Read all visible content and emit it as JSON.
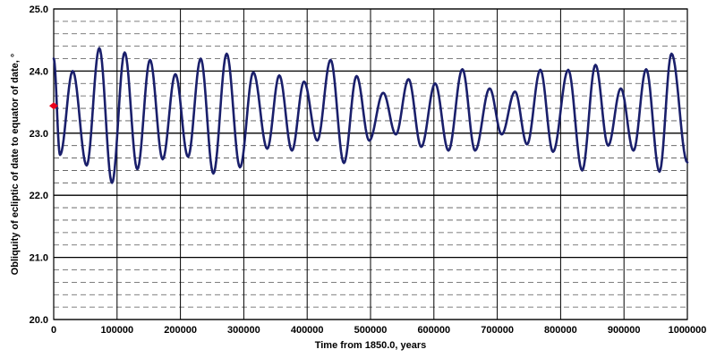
{
  "chart_data": {
    "type": "line",
    "title": "",
    "xlabel": "Time from 1850.0, years",
    "ylabel": "Obliquity of ecliptic of date to equator of date, °",
    "xlim": [
      0,
      1000000
    ],
    "ylim": [
      20.0,
      25.0
    ],
    "x_ticks": [
      0,
      100000,
      200000,
      300000,
      400000,
      500000,
      600000,
      700000,
      800000,
      900000,
      1000000
    ],
    "x_tick_labels": [
      "0",
      "100000",
      "200000",
      "300000",
      "400000",
      "500000",
      "600000",
      "700000",
      "800000",
      "900000",
      "1000000"
    ],
    "y_ticks": [
      20.0,
      21.0,
      22.0,
      23.0,
      24.0,
      25.0
    ],
    "y_tick_labels": [
      "20.0",
      "21.0",
      "22.0",
      "23.0",
      "24.0",
      "25.0"
    ],
    "grid": {
      "major_y": true,
      "minor_y_dashed": true,
      "vertical": true
    },
    "legend": "none",
    "line_color": "#1a1f6b",
    "marker_color": "#e8001c",
    "current_marker": {
      "x": 0,
      "y": 23.44
    },
    "series": [
      {
        "extrema": [
          [
            0,
            24.2
          ],
          [
            10000,
            22.65
          ],
          [
            30000,
            24.0
          ],
          [
            52000,
            22.48
          ],
          [
            72000,
            24.37
          ],
          [
            92000,
            22.2
          ],
          [
            112000,
            24.3
          ],
          [
            132000,
            22.42
          ],
          [
            152000,
            24.18
          ],
          [
            172000,
            22.58
          ],
          [
            192000,
            23.95
          ],
          [
            212000,
            22.62
          ],
          [
            232000,
            24.2
          ],
          [
            252000,
            22.35
          ],
          [
            273000,
            24.28
          ],
          [
            294000,
            22.45
          ],
          [
            315000,
            23.98
          ],
          [
            337000,
            22.75
          ],
          [
            356000,
            23.93
          ],
          [
            376000,
            22.72
          ],
          [
            395000,
            23.83
          ],
          [
            416000,
            22.88
          ],
          [
            437000,
            24.18
          ],
          [
            458000,
            22.52
          ],
          [
            478000,
            23.92
          ],
          [
            498000,
            22.88
          ],
          [
            520000,
            23.65
          ],
          [
            540000,
            22.98
          ],
          [
            560000,
            23.87
          ],
          [
            580000,
            22.78
          ],
          [
            602000,
            23.8
          ],
          [
            623000,
            22.72
          ],
          [
            645000,
            24.03
          ],
          [
            665000,
            22.72
          ],
          [
            688000,
            23.72
          ],
          [
            707000,
            22.98
          ],
          [
            728000,
            23.67
          ],
          [
            747000,
            22.82
          ],
          [
            768000,
            24.02
          ],
          [
            788000,
            22.7
          ],
          [
            812000,
            24.02
          ],
          [
            834000,
            22.4
          ],
          [
            855000,
            24.1
          ],
          [
            875000,
            22.8
          ],
          [
            895000,
            23.72
          ],
          [
            915000,
            22.72
          ],
          [
            935000,
            24.03
          ],
          [
            956000,
            22.38
          ],
          [
            975000,
            24.28
          ],
          [
            1000000,
            22.53
          ]
        ]
      }
    ]
  }
}
